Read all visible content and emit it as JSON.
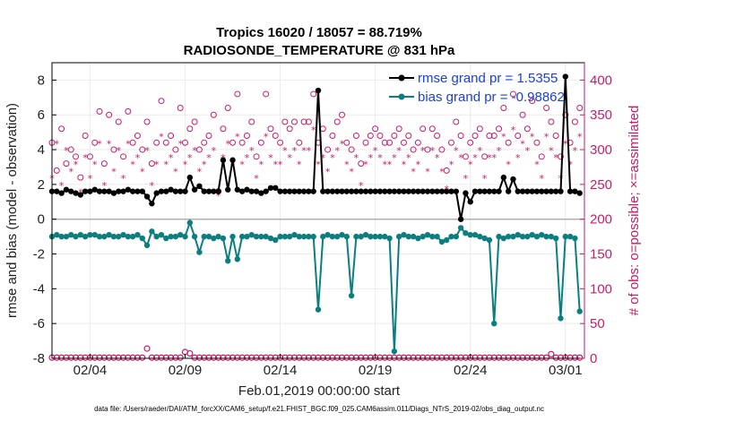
{
  "chart_data": {
    "type": "line",
    "title": "Tropics 16020 / 18057 = 88.719%",
    "subtitle": "RADIOSONDE_TEMPERATURE @ 831 hPa",
    "xlabel": "Feb.01,2019 00:00:00 start",
    "ylabel_left": "rmse and bias (model - observation)",
    "ylabel_right": "# of obs: o=possible; ×=assimilated",
    "footnote": "data file: /Users/raeder/DAI/ATM_forcXX/CAM6_setup/f.e21.FHIST_BGC.f09_025.CAM6assim.011/Diags_NTrS_2019-02/obs_diag_output.nc",
    "xlim": [
      1,
      29
    ],
    "ylim_left": [
      -8,
      9
    ],
    "ylim_right": [
      0,
      425
    ],
    "x_ticks": [
      3,
      8,
      13,
      18,
      23,
      28
    ],
    "x_tick_labels": [
      "02/04",
      "02/09",
      "02/14",
      "02/19",
      "02/24",
      "03/01"
    ],
    "y_left_ticks": [
      -8,
      -6,
      -4,
      -2,
      0,
      2,
      4,
      6,
      8
    ],
    "y_left_tick_labels": [
      "-8",
      "-6",
      "-4",
      "-2",
      "0",
      "2",
      "4",
      "6",
      "8"
    ],
    "y_right_ticks": [
      0,
      50,
      100,
      150,
      200,
      250,
      300,
      350,
      400
    ],
    "y_right_tick_labels": [
      "0",
      "50",
      "100",
      "150",
      "200",
      "250",
      "300",
      "350",
      "400"
    ],
    "grid": true,
    "legend": {
      "placement": "top-right",
      "entries": [
        "rmse grand pr = 1.5355",
        "bias grand pr = -0.98862"
      ]
    },
    "colors": {
      "rmse": "#000000",
      "bias": "#0b7f7f",
      "obs": "#cc1a66",
      "zero_line": "#b0b0b0",
      "legend_text": "#1a3fe0"
    },
    "series": [
      {
        "name": "rmse",
        "axis": "left",
        "x": [
          1.0,
          1.25,
          1.5,
          1.75,
          2.0,
          2.25,
          2.5,
          2.75,
          3.0,
          3.25,
          3.5,
          3.75,
          4.0,
          4.25,
          4.5,
          4.75,
          5.0,
          5.25,
          5.5,
          5.75,
          6.0,
          6.25,
          6.5,
          6.75,
          7.0,
          7.25,
          7.5,
          7.75,
          8.0,
          8.25,
          8.5,
          8.75,
          9.0,
          9.25,
          9.5,
          9.75,
          10.0,
          10.25,
          10.5,
          10.75,
          11.0,
          11.25,
          11.5,
          11.75,
          12.0,
          12.25,
          12.5,
          12.75,
          13.0,
          13.25,
          13.5,
          13.75,
          14.0,
          14.25,
          14.5,
          14.75,
          15.0,
          15.25,
          15.5,
          15.75,
          16.0,
          16.25,
          16.5,
          16.75,
          17.0,
          17.25,
          17.5,
          17.75,
          18.0,
          18.25,
          18.5,
          18.75,
          19.0,
          19.25,
          19.5,
          19.75,
          20.0,
          20.25,
          20.5,
          20.75,
          21.0,
          21.25,
          21.5,
          21.75,
          22.0,
          22.25,
          22.5,
          22.75,
          23.0,
          23.25,
          23.5,
          23.75,
          24.0,
          24.25,
          24.5,
          24.75,
          25.0,
          25.25,
          25.5,
          25.75,
          26.0,
          26.25,
          26.5,
          26.75,
          27.0,
          27.25,
          27.5,
          27.75,
          28.0,
          28.25,
          28.5,
          28.75
        ],
        "values": [
          1.6,
          1.6,
          1.5,
          1.7,
          1.6,
          1.5,
          1.4,
          1.6,
          1.6,
          1.7,
          1.6,
          1.6,
          1.6,
          1.5,
          1.6,
          1.6,
          1.7,
          1.6,
          1.6,
          1.6,
          1.3,
          0.9,
          1.5,
          1.6,
          1.6,
          1.7,
          1.6,
          1.6,
          1.6,
          2.4,
          1.7,
          1.9,
          1.6,
          1.6,
          1.6,
          1.6,
          3.4,
          1.7,
          3.4,
          1.7,
          1.6,
          1.7,
          1.6,
          1.6,
          1.5,
          1.6,
          1.8,
          1.8,
          1.6,
          1.6,
          1.6,
          1.6,
          1.6,
          1.6,
          1.6,
          1.6,
          7.4,
          1.6,
          1.6,
          1.6,
          1.6,
          1.6,
          1.6,
          1.6,
          1.6,
          1.6,
          1.6,
          1.6,
          1.6,
          1.6,
          1.6,
          1.6,
          1.6,
          1.6,
          1.6,
          1.6,
          1.6,
          1.6,
          1.6,
          1.6,
          1.6,
          1.6,
          1.6,
          1.6,
          1.6,
          1.6,
          0.0,
          1.5,
          1.0,
          1.6,
          1.6,
          1.6,
          1.6,
          1.6,
          1.6,
          2.4,
          1.6,
          2.3,
          1.6,
          1.6,
          1.6,
          1.6,
          1.6,
          1.6,
          1.6,
          1.6,
          1.6,
          1.6,
          8.2,
          1.6,
          1.6,
          1.5
        ]
      },
      {
        "name": "bias",
        "axis": "left",
        "x": [
          1.0,
          1.25,
          1.5,
          1.75,
          2.0,
          2.25,
          2.5,
          2.75,
          3.0,
          3.25,
          3.5,
          3.75,
          4.0,
          4.25,
          4.5,
          4.75,
          5.0,
          5.25,
          5.5,
          5.75,
          6.0,
          6.25,
          6.5,
          6.75,
          7.0,
          7.25,
          7.5,
          7.75,
          8.0,
          8.25,
          8.5,
          8.75,
          9.0,
          9.25,
          9.5,
          9.75,
          10.0,
          10.25,
          10.5,
          10.75,
          11.0,
          11.25,
          11.5,
          11.75,
          12.0,
          12.25,
          12.5,
          12.75,
          13.0,
          13.25,
          13.5,
          13.75,
          14.0,
          14.25,
          14.5,
          14.75,
          15.0,
          15.25,
          15.5,
          15.75,
          16.0,
          16.25,
          16.5,
          16.75,
          17.0,
          17.25,
          17.5,
          17.75,
          18.0,
          18.25,
          18.5,
          18.75,
          19.0,
          19.25,
          19.5,
          19.75,
          20.0,
          20.25,
          20.5,
          20.75,
          21.0,
          21.25,
          21.5,
          21.75,
          22.0,
          22.25,
          22.5,
          22.75,
          23.0,
          23.25,
          23.5,
          23.75,
          24.0,
          24.25,
          24.5,
          24.75,
          25.0,
          25.25,
          25.5,
          25.75,
          26.0,
          26.25,
          26.5,
          26.75,
          27.0,
          27.25,
          27.5,
          27.75,
          28.0,
          28.25,
          28.5,
          28.75
        ],
        "values": [
          -1.0,
          -0.9,
          -1.0,
          -1.0,
          -0.9,
          -1.0,
          -0.9,
          -1.0,
          -0.9,
          -0.9,
          -1.0,
          -1.0,
          -0.9,
          -1.0,
          -1.0,
          -0.9,
          -1.0,
          -1.0,
          -0.9,
          -1.1,
          -1.5,
          -0.7,
          -1.0,
          -0.9,
          -1.1,
          -1.0,
          -1.0,
          -0.9,
          -1.0,
          -0.2,
          -1.0,
          -1.9,
          -1.0,
          -1.0,
          -1.1,
          -1.0,
          -1.1,
          -2.4,
          -1.0,
          -2.3,
          -1.0,
          -1.0,
          -0.9,
          -1.0,
          -1.0,
          -1.0,
          -1.1,
          -1.2,
          -1.0,
          -1.0,
          -1.0,
          -0.9,
          -1.0,
          -1.0,
          -1.0,
          -1.0,
          -5.2,
          -1.0,
          -0.9,
          -1.0,
          -1.0,
          -0.9,
          -1.0,
          -4.4,
          -1.0,
          -1.0,
          -0.9,
          -1.0,
          -1.0,
          -1.0,
          -1.0,
          -1.1,
          -7.6,
          -1.0,
          -0.9,
          -1.0,
          -1.0,
          -1.1,
          -1.0,
          -0.9,
          -1.0,
          -1.0,
          -1.3,
          -1.2,
          -1.0,
          -1.0,
          -0.5,
          -0.8,
          -0.9,
          -0.9,
          -1.0,
          -1.1,
          -1.2,
          -6.0,
          -1.0,
          -1.1,
          -1.0,
          -1.0,
          -0.9,
          -1.0,
          -1.0,
          -0.9,
          -1.0,
          -0.9,
          -1.0,
          -1.0,
          -1.1,
          -5.7,
          -1.0,
          -1.0,
          -1.1,
          -5.3
        ]
      },
      {
        "name": "obs possible (o)",
        "axis": "right",
        "x": [
          1.0,
          1.25,
          1.5,
          1.75,
          2.0,
          2.25,
          2.5,
          2.75,
          3.0,
          3.25,
          3.5,
          3.75,
          4.0,
          4.25,
          4.5,
          4.75,
          5.0,
          5.25,
          5.5,
          5.75,
          6.0,
          6.25,
          6.5,
          6.75,
          7.0,
          7.25,
          7.5,
          7.75,
          8.0,
          8.25,
          8.5,
          8.75,
          9.0,
          9.25,
          9.5,
          9.75,
          10.0,
          10.25,
          10.5,
          10.75,
          11.0,
          11.25,
          11.5,
          11.75,
          12.0,
          12.25,
          12.5,
          12.75,
          13.0,
          13.25,
          13.5,
          13.75,
          14.0,
          14.25,
          14.5,
          14.75,
          15.0,
          15.25,
          15.5,
          15.75,
          16.0,
          16.25,
          16.5,
          16.75,
          17.0,
          17.25,
          17.5,
          17.75,
          18.0,
          18.25,
          18.5,
          18.75,
          19.0,
          19.25,
          19.5,
          19.75,
          20.0,
          20.25,
          20.5,
          20.75,
          21.0,
          21.25,
          21.5,
          21.75,
          22.0,
          22.25,
          22.5,
          22.75,
          23.0,
          23.25,
          23.5,
          23.75,
          24.0,
          24.25,
          24.5,
          24.75,
          25.0,
          25.25,
          25.5,
          25.75,
          26.0,
          26.25,
          26.5,
          26.75,
          27.0,
          27.25,
          27.5,
          27.75,
          28.0,
          28.25,
          28.5,
          28.75
        ],
        "values": [
          310,
          270,
          330,
          280,
          300,
          290,
          260,
          320,
          290,
          310,
          355,
          280,
          350,
          300,
          340,
          290,
          355,
          310,
          320,
          300,
          340,
          280,
          310,
          370,
          310,
          320,
          300,
          360,
          310,
          330,
          340,
          300,
          310,
          320,
          350,
          240,
          330,
          360,
          310,
          380,
          310,
          320,
          340,
          290,
          310,
          380,
          330,
          320,
          310,
          340,
          330,
          340,
          310,
          340,
          340,
          380,
          310,
          330,
          300,
          320,
          340,
          350,
          310,
          300,
          320,
          280,
          310,
          320,
          330,
          320,
          310,
          310,
          320,
          330,
          310,
          320,
          300,
          310,
          330,
          300,
          330,
          320,
          300,
          270,
          310,
          340,
          320,
          290,
          310,
          320,
          330,
          290,
          320,
          320,
          330,
          360,
          310,
          380,
          320,
          350,
          330,
          370,
          310,
          290,
          360,
          340,
          320,
          290,
          350,
          310,
          340,
          360
        ]
      },
      {
        "name": "obs assimilated (x)",
        "axis": "right",
        "x": [
          1.0,
          1.25,
          1.5,
          1.75,
          2.0,
          2.25,
          2.5,
          2.75,
          3.0,
          3.25,
          3.5,
          3.75,
          4.0,
          4.25,
          4.5,
          4.75,
          5.0,
          5.25,
          5.5,
          5.75,
          6.0,
          6.25,
          6.5,
          6.75,
          7.0,
          7.25,
          7.5,
          7.75,
          8.0,
          8.25,
          8.5,
          8.75,
          9.0,
          9.25,
          9.5,
          9.75,
          10.0,
          10.25,
          10.5,
          10.75,
          11.0,
          11.25,
          11.5,
          11.75,
          12.0,
          12.25,
          12.5,
          12.75,
          13.0,
          13.25,
          13.5,
          13.75,
          14.0,
          14.25,
          14.5,
          14.75,
          15.0,
          15.25,
          15.5,
          15.75,
          16.0,
          16.25,
          16.5,
          16.75,
          17.0,
          17.25,
          17.5,
          17.75,
          18.0,
          18.25,
          18.5,
          18.75,
          19.0,
          19.25,
          19.5,
          19.75,
          20.0,
          20.25,
          20.5,
          20.75,
          21.0,
          21.25,
          21.5,
          21.75,
          22.0,
          22.25,
          22.5,
          22.75,
          23.0,
          23.25,
          23.5,
          23.75,
          24.0,
          24.25,
          24.5,
          24.75,
          25.0,
          25.25,
          25.5,
          25.75,
          26.0,
          26.25,
          26.5,
          26.75,
          27.0,
          27.25,
          27.5,
          27.75,
          28.0,
          28.25,
          28.5,
          28.75
        ],
        "values": [
          260,
          310,
          250,
          300,
          270,
          280,
          240,
          290,
          260,
          280,
          310,
          250,
          310,
          270,
          300,
          260,
          310,
          280,
          290,
          270,
          300,
          250,
          280,
          320,
          280,
          290,
          270,
          310,
          280,
          290,
          300,
          270,
          280,
          290,
          300,
          235,
          290,
          310,
          280,
          320,
          280,
          290,
          300,
          260,
          280,
          320,
          290,
          280,
          280,
          300,
          290,
          300,
          280,
          300,
          300,
          330,
          280,
          290,
          270,
          290,
          300,
          310,
          280,
          270,
          290,
          250,
          280,
          290,
          300,
          290,
          280,
          280,
          290,
          300,
          280,
          290,
          270,
          280,
          300,
          270,
          300,
          290,
          270,
          245,
          280,
          300,
          290,
          260,
          280,
          290,
          300,
          260,
          290,
          290,
          300,
          320,
          280,
          330,
          290,
          310,
          300,
          320,
          280,
          260,
          320,
          300,
          290,
          260,
          310,
          280,
          300,
          320
        ]
      },
      {
        "name": "obs near zero (o)",
        "axis": "right",
        "x": [
          1.0,
          1.25,
          1.5,
          1.75,
          2.0,
          2.25,
          2.5,
          2.75,
          3.0,
          3.25,
          3.5,
          3.75,
          4.0,
          4.25,
          4.5,
          4.75,
          5.0,
          5.25,
          5.5,
          5.75,
          6.0,
          6.25,
          6.5,
          6.75,
          7.0,
          7.25,
          7.5,
          7.75,
          8.0,
          8.25,
          8.5,
          8.75,
          9.0,
          9.25,
          9.5,
          9.75,
          10.0,
          10.25,
          10.5,
          10.75,
          11.0,
          11.25,
          11.5,
          11.75,
          12.0,
          12.25,
          12.5,
          12.75,
          13.0,
          13.25,
          13.5,
          13.75,
          14.0,
          14.25,
          14.5,
          14.75,
          15.0,
          15.25,
          15.5,
          15.75,
          16.0,
          16.25,
          16.5,
          16.75,
          17.0,
          17.25,
          17.5,
          17.75,
          18.0,
          18.25,
          18.5,
          18.75,
          19.0,
          19.25,
          19.5,
          19.75,
          20.0,
          20.25,
          20.5,
          20.75,
          21.0,
          21.25,
          21.5,
          21.75,
          22.0,
          22.25,
          22.5,
          22.75,
          23.0,
          23.25,
          23.5,
          23.75,
          24.0,
          24.25,
          24.5,
          24.75,
          25.0,
          25.25,
          25.5,
          25.75,
          26.0,
          26.25,
          26.5,
          26.75,
          27.0,
          27.25,
          27.5,
          27.75,
          28.0,
          28.25,
          28.5,
          28.75
        ],
        "values": [
          1,
          1,
          1,
          1,
          1,
          1,
          1,
          1,
          1,
          1,
          1,
          1,
          1,
          1,
          1,
          1,
          1,
          1,
          1,
          1,
          14,
          1,
          1,
          1,
          1,
          1,
          1,
          1,
          9,
          7,
          1,
          1,
          1,
          1,
          1,
          1,
          1,
          1,
          1,
          1,
          1,
          1,
          1,
          1,
          1,
          1,
          1,
          1,
          1,
          1,
          1,
          1,
          1,
          1,
          1,
          1,
          1,
          1,
          1,
          1,
          1,
          1,
          1,
          1,
          1,
          1,
          1,
          1,
          1,
          1,
          1,
          1,
          1,
          1,
          1,
          1,
          1,
          1,
          1,
          1,
          1,
          1,
          1,
          1,
          1,
          1,
          1,
          1,
          1,
          1,
          1,
          1,
          1,
          1,
          1,
          1,
          1,
          1,
          1,
          1,
          1,
          1,
          1,
          1,
          1,
          6,
          1,
          1,
          1,
          1,
          1,
          1
        ]
      }
    ]
  }
}
